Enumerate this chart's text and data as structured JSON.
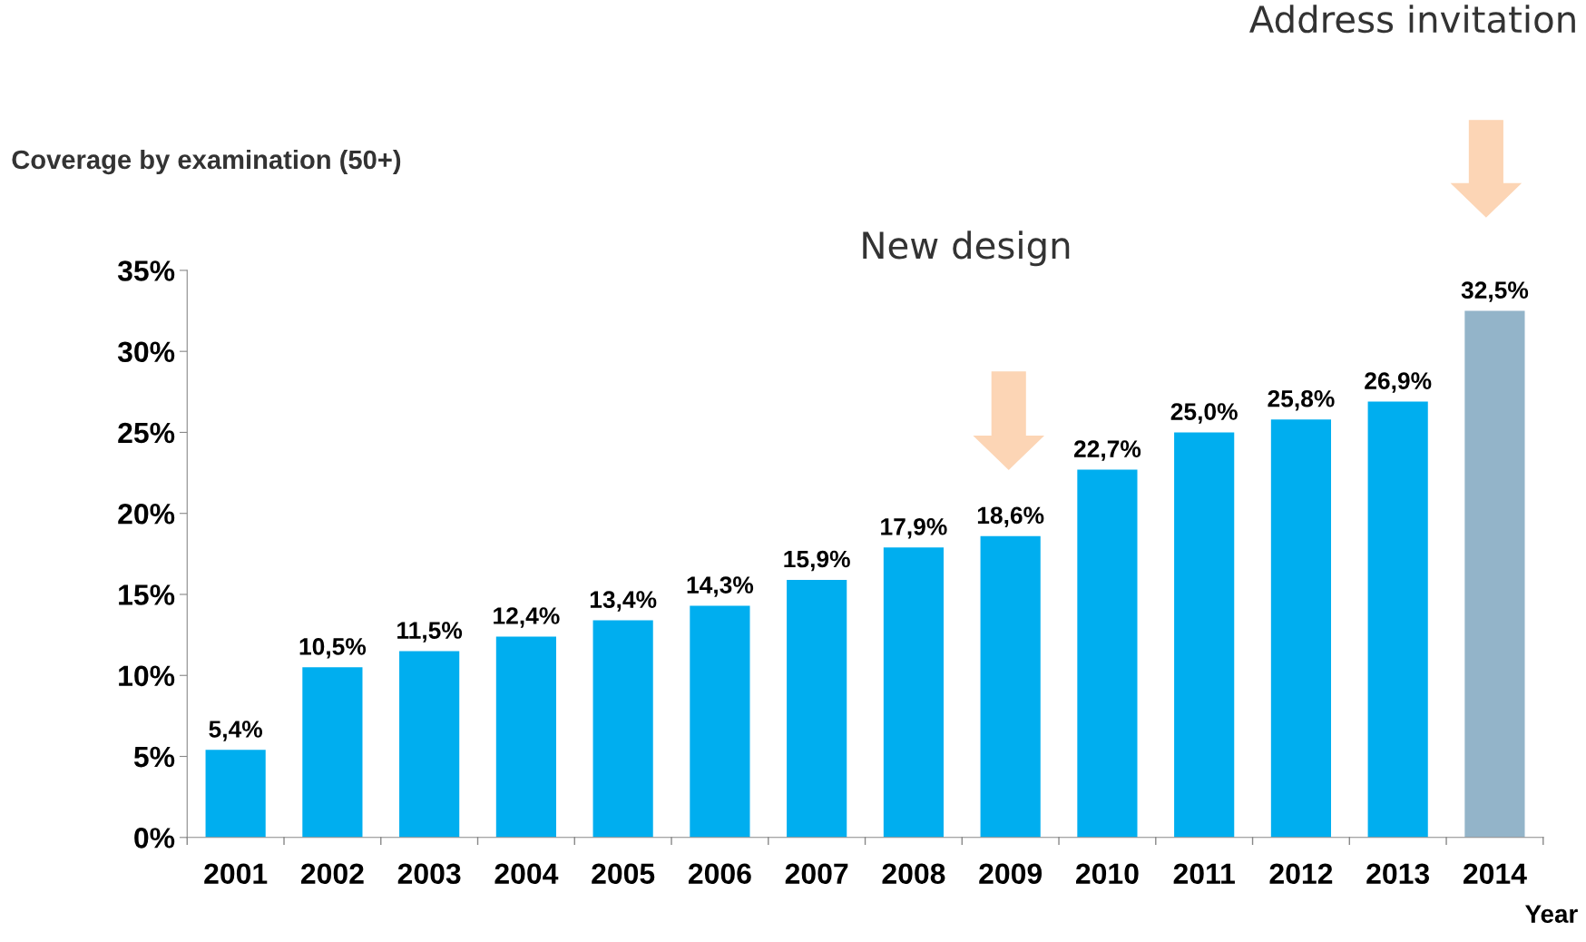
{
  "chart_data": {
    "type": "bar",
    "ylabel": "Coverage by examination (50+)",
    "xlabel": "Year",
    "categories": [
      "2001",
      "2002",
      "2003",
      "2004",
      "2005",
      "2006",
      "2007",
      "2008",
      "2009",
      "2010",
      "2011",
      "2012",
      "2013",
      "2014"
    ],
    "values": [
      5.4,
      10.5,
      11.5,
      12.4,
      13.4,
      14.3,
      15.9,
      17.9,
      18.6,
      22.7,
      25.0,
      25.8,
      26.9,
      32.5
    ],
    "value_labels": [
      "5,4%",
      "10,5%",
      "11,5%",
      "12,4%",
      "13,4%",
      "14,3%",
      "15,9%",
      "17,9%",
      "18,6%",
      "22,7%",
      "25,0%",
      "25,8%",
      "26,9%",
      "32,5%"
    ],
    "colors": [
      "#00aeef",
      "#00aeef",
      "#00aeef",
      "#00aeef",
      "#00aeef",
      "#00aeef",
      "#00aeef",
      "#00aeef",
      "#00aeef",
      "#00aeef",
      "#00aeef",
      "#00aeef",
      "#00aeef",
      "#93b4c9"
    ],
    "ylim": [
      0,
      35
    ],
    "yticks": [
      {
        "value": 0,
        "label": "0%"
      },
      {
        "value": 5,
        "label": "5%"
      },
      {
        "value": 10,
        "label": "10%"
      },
      {
        "value": 15,
        "label": "15%"
      },
      {
        "value": 20,
        "label": "20%"
      },
      {
        "value": 25,
        "label": "25%"
      },
      {
        "value": 30,
        "label": "30%"
      },
      {
        "value": 35,
        "label": "35%"
      }
    ],
    "grid": false,
    "legend": false,
    "annotations": [
      "New design",
      "Address invitation"
    ]
  }
}
